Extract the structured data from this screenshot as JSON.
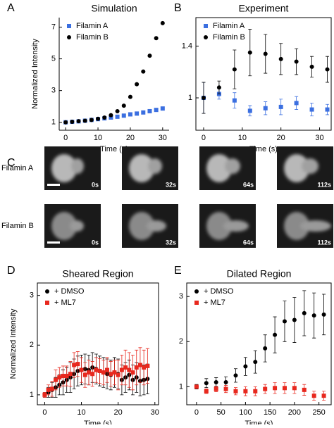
{
  "chart_data": [
    {
      "type": "scatter",
      "panel": "A",
      "title": "Simulation",
      "xlabel": "Time (s)",
      "ylabel": "Normalized Intensity",
      "x": [
        0,
        2,
        4,
        6,
        8,
        10,
        12,
        14,
        16,
        18,
        20,
        22,
        24,
        26,
        28,
        30
      ],
      "series": [
        {
          "name": "Filamin A",
          "color": "#3b6fe0",
          "marker": "square",
          "values": [
            1.0,
            1.03,
            1.06,
            1.1,
            1.15,
            1.2,
            1.25,
            1.3,
            1.35,
            1.42,
            1.5,
            1.55,
            1.62,
            1.7,
            1.78,
            1.87
          ]
        },
        {
          "name": "Filamin B",
          "color": "#000000",
          "marker": "circle",
          "values": [
            1.0,
            1.03,
            1.07,
            1.1,
            1.15,
            1.22,
            1.3,
            1.45,
            1.7,
            2.05,
            2.6,
            3.4,
            4.2,
            5.2,
            6.3,
            7.25
          ]
        }
      ],
      "xlim": [
        -2,
        32
      ],
      "ylim": [
        0.5,
        7.6
      ],
      "xticks": [
        0,
        10,
        20,
        30
      ],
      "yticks": [
        1,
        3,
        5,
        7
      ],
      "box": false
    },
    {
      "type": "scatter",
      "panel": "B",
      "title": "Experiment",
      "xlabel": "Time (s)",
      "x": [
        0,
        4,
        8,
        12,
        16,
        20,
        24,
        28,
        32
      ],
      "series": [
        {
          "name": "Filamin A",
          "color": "#3b6fe0",
          "marker": "square",
          "values": [
            1.0,
            1.03,
            0.98,
            0.9,
            0.92,
            0.93,
            0.96,
            0.91,
            0.91
          ],
          "errors": [
            0.12,
            0.04,
            0.06,
            0.04,
            0.05,
            0.06,
            0.05,
            0.05,
            0.04
          ]
        },
        {
          "name": "Filamin B",
          "color": "#000000",
          "marker": "circle",
          "values": [
            1.0,
            1.08,
            1.22,
            1.35,
            1.34,
            1.3,
            1.28,
            1.24,
            1.22
          ],
          "errors": [
            0.12,
            0.05,
            0.15,
            0.18,
            0.15,
            0.12,
            0.1,
            0.08,
            0.1
          ]
        }
      ],
      "xlim": [
        -2,
        33
      ],
      "ylim": [
        0.75,
        1.62
      ],
      "xticks": [
        0,
        10,
        20,
        30
      ],
      "yticks": [
        1,
        1.4
      ],
      "box": true
    },
    {
      "type": "scatter",
      "panel": "D",
      "title": "Sheared Region",
      "xlabel": "Time (s)",
      "ylabel": "Normalized Intensity",
      "x": [
        0,
        1,
        2,
        3,
        4,
        5,
        6,
        7,
        8,
        9,
        10,
        11,
        12,
        13,
        14,
        15,
        16,
        17,
        18,
        19,
        20,
        21,
        22,
        23,
        24,
        25,
        26,
        27,
        28
      ],
      "series": [
        {
          "name": "+ DMSO",
          "color": "#000000",
          "marker": "circle",
          "values": [
            1.0,
            1.05,
            1.1,
            1.15,
            1.2,
            1.25,
            1.3,
            1.35,
            1.42,
            1.48,
            1.5,
            1.52,
            1.5,
            1.55,
            1.52,
            1.48,
            1.45,
            1.42,
            1.4,
            1.45,
            1.42,
            1.3,
            1.35,
            1.4,
            1.3,
            1.35,
            1.28,
            1.3,
            1.32
          ],
          "errors": [
            0.05,
            0.1,
            0.15,
            0.2,
            0.2,
            0.25,
            0.25,
            0.3,
            0.3,
            0.3,
            0.3,
            0.3,
            0.3,
            0.3,
            0.3,
            0.3,
            0.3,
            0.3,
            0.3,
            0.3,
            0.3,
            0.3,
            0.3,
            0.3,
            0.3,
            0.3,
            0.3,
            0.3,
            0.3
          ]
        },
        {
          "name": "+ ML7",
          "color": "#e8281e",
          "marker": "square",
          "values": [
            1.0,
            1.1,
            1.12,
            1.3,
            1.35,
            1.38,
            1.38,
            1.42,
            1.6,
            1.62,
            1.5,
            1.4,
            1.45,
            1.42,
            1.5,
            1.48,
            1.45,
            1.5,
            1.42,
            1.45,
            1.4,
            1.5,
            1.55,
            1.5,
            1.45,
            1.55,
            1.6,
            1.55,
            1.58
          ],
          "errors": [
            0.05,
            0.1,
            0.15,
            0.2,
            0.2,
            0.2,
            0.2,
            0.25,
            0.25,
            0.25,
            0.25,
            0.25,
            0.25,
            0.25,
            0.25,
            0.25,
            0.25,
            0.25,
            0.25,
            0.25,
            0.3,
            0.3,
            0.35,
            0.35,
            0.35,
            0.35,
            0.35,
            0.35,
            0.35
          ]
        }
      ],
      "xlim": [
        -2,
        31
      ],
      "ylim": [
        0.8,
        3.25
      ],
      "xticks": [
        0,
        10,
        20,
        30
      ],
      "yticks": [
        1,
        2,
        3
      ],
      "box": true
    },
    {
      "type": "scatter",
      "panel": "E",
      "title": "Dilated Region",
      "xlabel": "Time (s)",
      "x": [
        0,
        20,
        40,
        60,
        80,
        100,
        120,
        140,
        160,
        180,
        200,
        220,
        240,
        260
      ],
      "series": [
        {
          "name": "+ DMSO",
          "color": "#000000",
          "marker": "circle",
          "values": [
            1.0,
            1.08,
            1.1,
            1.1,
            1.25,
            1.45,
            1.55,
            1.85,
            2.15,
            2.45,
            2.48,
            2.63,
            2.58,
            2.6
          ],
          "errors": [
            0.05,
            0.1,
            0.1,
            0.12,
            0.15,
            0.2,
            0.25,
            0.3,
            0.4,
            0.45,
            0.5,
            0.5,
            0.5,
            0.45
          ]
        },
        {
          "name": "+ ML7",
          "color": "#e8281e",
          "marker": "square",
          "values": [
            1.0,
            0.9,
            0.95,
            0.95,
            0.9,
            0.9,
            0.9,
            0.95,
            0.97,
            0.97,
            0.97,
            0.93,
            0.8,
            0.8
          ],
          "errors": [
            0.03,
            0.05,
            0.06,
            0.08,
            0.08,
            0.1,
            0.1,
            0.1,
            0.12,
            0.12,
            0.12,
            0.12,
            0.1,
            0.1
          ]
        }
      ],
      "xlim": [
        -20,
        275
      ],
      "ylim": [
        0.6,
        3.3
      ],
      "xticks": [
        0,
        50,
        100,
        150,
        200,
        250
      ],
      "yticks": [
        1,
        2,
        3
      ],
      "box": true
    }
  ],
  "panel_c": {
    "panel": "C",
    "rows": [
      "Filamin A",
      "Filamin B"
    ],
    "times": [
      "0s",
      "32s",
      "64s",
      "112s"
    ]
  }
}
